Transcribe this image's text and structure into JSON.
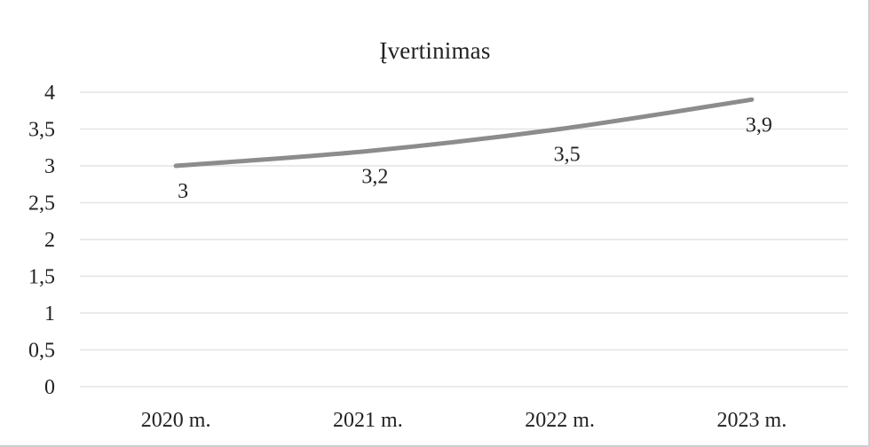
{
  "chart_data": {
    "type": "line",
    "title": "Įvertinimas",
    "categories": [
      "2020 m.",
      "2021 m.",
      "2022 m.",
      "2023 m."
    ],
    "series": [
      {
        "values": [
          3,
          3.2,
          3.5,
          3.9
        ],
        "data_labels": [
          "3",
          "3,2",
          "3,5",
          "3,9"
        ],
        "color": "#8c8c8c"
      }
    ],
    "ylim": [
      0,
      4
    ],
    "y_ticks": [
      "0",
      "0,5",
      "1",
      "1,5",
      "2",
      "2,5",
      "3",
      "3,5",
      "4"
    ],
    "xlabel": "",
    "ylabel": "",
    "grid": true,
    "gridline_color": "#e4e4e4",
    "legend": "none"
  }
}
